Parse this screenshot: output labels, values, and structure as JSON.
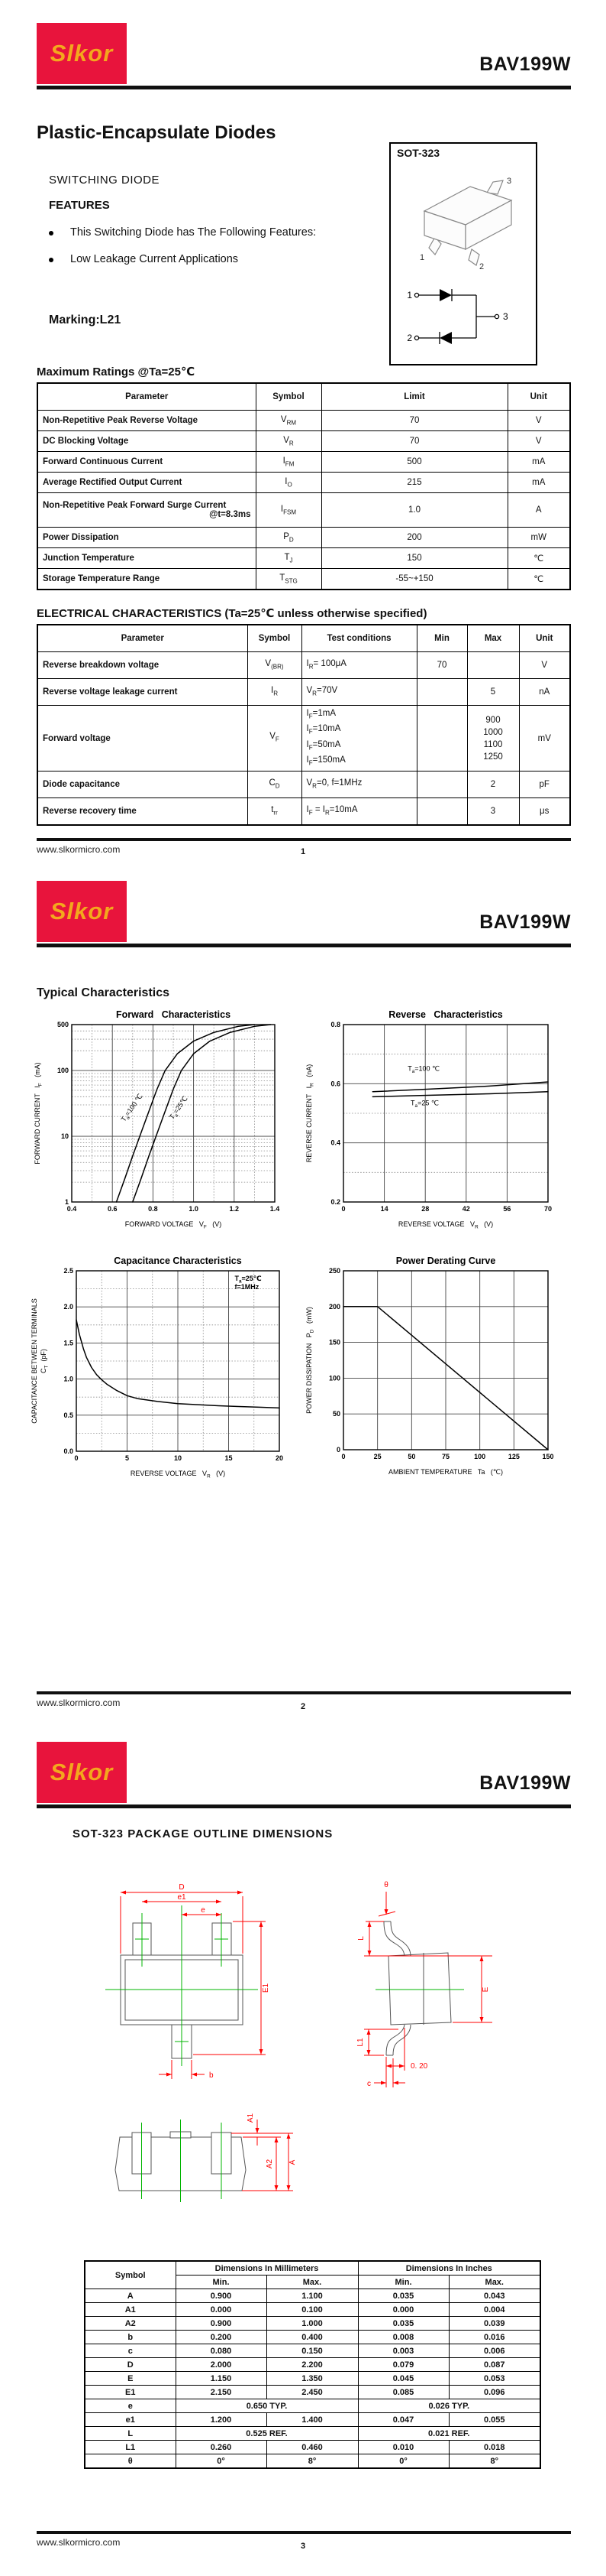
{
  "brand": {
    "logo_text": "Slkor",
    "logo_bg": "#e8143c",
    "logo_text_color": "#f3a81d",
    "part_number": "BAV199W"
  },
  "footer": {
    "website": "www.slkormicro.com",
    "pages": [
      "1",
      "2",
      "3"
    ]
  },
  "page1": {
    "title": "Plastic-Encapsulate Diodes",
    "subtitle": "SWITCHING DIODE",
    "features_heading": "FEATURES",
    "features": [
      "This Switching Diode has The Following Features:",
      "Low Leakage Current Applications"
    ],
    "package": {
      "name": "SOT-323",
      "pins": {
        "p1": "1",
        "p2": "2",
        "p3": "3"
      }
    },
    "marking": "Marking:L21",
    "max_ratings": {
      "heading": "Maximum Ratings @Ta=25℃",
      "columns": [
        "Parameter",
        "Symbol",
        "Limit",
        "Unit"
      ],
      "rows": [
        {
          "parameter": "Non-Repetitive Peak Reverse Voltage",
          "sym": "V",
          "sub": "RM",
          "limit": "70",
          "unit": "V"
        },
        {
          "parameter": "DC Blocking  Voltage",
          "sym": "V",
          "sub": "R",
          "limit": "70",
          "unit": "V"
        },
        {
          "parameter": "Forward Continuous Current",
          "sym": "I",
          "sub": "FM",
          "limit": "500",
          "unit": "mA"
        },
        {
          "parameter": "Average Rectified Output Current",
          "sym": "I",
          "sub": "O",
          "limit": "215",
          "unit": "mA"
        },
        {
          "parameter": "Non-Repetitive Peak Forward Surge Current",
          "parameter2": "@t=8.3ms",
          "tall": true,
          "sym": "I",
          "sub": "FSM",
          "limit": "1.0",
          "unit": "A"
        },
        {
          "parameter": "Power Dissipation",
          "sym": "P",
          "sub": "D",
          "limit": "200",
          "unit": "mW"
        },
        {
          "parameter": "Junction Temperature",
          "sym": "T",
          "sub": "J",
          "limit": "150",
          "unit": "℃"
        },
        {
          "parameter": "Storage Temperature Range",
          "sym": "T",
          "sub": "STG",
          "limit": "-55~+150",
          "unit": "℃"
        }
      ]
    },
    "electrical": {
      "heading": "ELECTRICAL CHARACTERISTICS (Ta=25℃ unless otherwise specified)",
      "columns": [
        "Parameter",
        "Symbol",
        "Test   conditions",
        "Min",
        "Max",
        "Unit"
      ],
      "rows": [
        {
          "parameter": "Reverse breakdown voltage",
          "sym": "V",
          "sub": "(BR)",
          "cond": [
            "I~R~= 100μA"
          ],
          "min": "70",
          "max": [
            ""
          ],
          "unit": "V"
        },
        {
          "parameter": "Reverse voltage  leakage current",
          "sym": "I",
          "sub": "R",
          "cond": [
            "V~R~=70V"
          ],
          "min": "",
          "max": [
            "5"
          ],
          "unit": "nA"
        },
        {
          "parameter": "Forward  voltage",
          "sym": "V",
          "sub": "F",
          "cond": [
            "I~F~=1mA",
            "I~F~=10mA",
            "I~F~=50mA",
            "I~F~=150mA"
          ],
          "min": "",
          "max": [
            "900",
            "1000",
            "1100",
            "1250"
          ],
          "unit": "mV"
        },
        {
          "parameter": "Diode  capacitance",
          "sym": "C",
          "sub": "D",
          "cond": [
            "V~R~=0, f=1MHz"
          ],
          "min": "",
          "max": [
            "2"
          ],
          "unit": "pF"
        },
        {
          "parameter": "Reverse recovery time",
          "sym": "t",
          "sub": "rr",
          "cond": [
            "I~F~ = I~R~=10mA"
          ],
          "min": "",
          "max": [
            "3"
          ],
          "unit": "μs"
        }
      ]
    }
  },
  "page2": {
    "heading": "Typical Characteristics"
  },
  "chart_data": [
    {
      "type": "line",
      "title": "Forward   Characteristics",
      "xlabel": "FORWARD VOLTAGE   V~F~   (V)",
      "ylabel": "FORWARD CURRENT   I~F~   (mA)",
      "xlim": [
        0.4,
        1.4
      ],
      "ylim": [
        1,
        500
      ],
      "ylog": true,
      "xticks": [
        [
          0.4,
          "0.4"
        ],
        [
          0.6,
          "0.6"
        ],
        [
          0.8,
          "0.8"
        ],
        [
          1.0,
          "1.0"
        ],
        [
          1.2,
          "1.2"
        ],
        [
          1.4,
          "1.4"
        ]
      ],
      "yticks": [
        [
          1,
          "1"
        ],
        [
          10,
          "10"
        ],
        [
          100,
          "100"
        ],
        [
          500,
          "500"
        ]
      ],
      "xgrid_solid": [
        0.6,
        0.8,
        1.0,
        1.2
      ],
      "xgrid_dotted": [
        0.5,
        0.7,
        0.9,
        1.1,
        1.3
      ],
      "ygrid_solid": [
        10,
        100
      ],
      "ygrid_dotted": [
        2,
        3,
        4,
        5,
        6,
        7,
        8,
        9,
        20,
        30,
        40,
        50,
        60,
        70,
        80,
        90,
        200,
        300,
        400
      ],
      "series": [
        {
          "name": "Ta=100C",
          "label": "T~a~=100 ℃",
          "label_at": [
            0.705,
            26
          ],
          "label_rotate": -55,
          "points": [
            [
              0.62,
              1
            ],
            [
              0.66,
              2.2
            ],
            [
              0.7,
              5
            ],
            [
              0.74,
              11
            ],
            [
              0.78,
              24
            ],
            [
              0.82,
              52
            ],
            [
              0.86,
              100
            ],
            [
              0.92,
              180
            ],
            [
              1.0,
              280
            ],
            [
              1.1,
              380
            ],
            [
              1.22,
              470
            ],
            [
              1.3,
              500
            ]
          ]
        },
        {
          "name": "Ta=25C",
          "label": "T~a~=25℃",
          "label_at": [
            0.935,
            26
          ],
          "label_rotate": -55,
          "points": [
            [
              0.7,
              1
            ],
            [
              0.74,
              2.2
            ],
            [
              0.78,
              5
            ],
            [
              0.82,
              11
            ],
            [
              0.86,
              24
            ],
            [
              0.9,
              52
            ],
            [
              0.94,
              100
            ],
            [
              1.0,
              180
            ],
            [
              1.08,
              280
            ],
            [
              1.18,
              380
            ],
            [
              1.3,
              470
            ],
            [
              1.38,
              500
            ]
          ]
        }
      ]
    },
    {
      "type": "line",
      "title": "Reverse   Characteristics",
      "xlabel": "REVERSE VOLTAGE   V~R~   (V)",
      "ylabel": "REVERSE CURRENT   I~R~   (nA)",
      "xlim": [
        0,
        70
      ],
      "ylim": [
        0.2,
        0.8
      ],
      "xticks": [
        [
          0,
          "0"
        ],
        [
          14,
          "14"
        ],
        [
          28,
          "28"
        ],
        [
          42,
          "42"
        ],
        [
          56,
          "56"
        ],
        [
          70,
          "70"
        ]
      ],
      "yticks": [
        [
          0.2,
          "0.2"
        ],
        [
          0.4,
          "0.4"
        ],
        [
          0.6,
          "0.6"
        ],
        [
          0.8,
          "0.8"
        ]
      ],
      "xgrid_solid": [
        14,
        28,
        42,
        56
      ],
      "ygrid_solid": [
        0.4,
        0.6
      ],
      "ygrid_dotted": [
        0.3,
        0.5,
        0.7
      ],
      "series": [
        {
          "name": "Ta=100C",
          "label": "T~a~=100 ℃",
          "label_at": [
            22,
            0.643
          ],
          "label_anchor": "start",
          "points": [
            [
              10,
              0.573
            ],
            [
              30,
              0.582
            ],
            [
              50,
              0.592
            ],
            [
              70,
              0.606
            ]
          ]
        },
        {
          "name": "Ta=25C",
          "label": "T~a~=25 ℃",
          "label_at": [
            23,
            0.527
          ],
          "label_anchor": "start",
          "points": [
            [
              10,
              0.556
            ],
            [
              30,
              0.561
            ],
            [
              50,
              0.566
            ],
            [
              70,
              0.573
            ]
          ]
        }
      ]
    },
    {
      "type": "line",
      "title": "Capacitance Characteristics",
      "xlabel": "REVERSE VOLTAGE   V~R~   (V)",
      "ylabel": "CAPACITANCE BETWEEN TERMINALS\nC~T~  (pF)",
      "xlim": [
        0,
        20
      ],
      "ylim": [
        0,
        2.5
      ],
      "xticks": [
        [
          0,
          "0"
        ],
        [
          5,
          "5"
        ],
        [
          10,
          "10"
        ],
        [
          15,
          "15"
        ],
        [
          20,
          "20"
        ]
      ],
      "yticks": [
        [
          0,
          "0.0"
        ],
        [
          0.5,
          "0.5"
        ],
        [
          1.0,
          "1.0"
        ],
        [
          1.5,
          "1.5"
        ],
        [
          2.0,
          "2.0"
        ],
        [
          2.5,
          "2.5"
        ]
      ],
      "xgrid_solid": [
        5,
        10,
        15
      ],
      "xgrid_dotted": [
        2.5,
        7.5,
        12.5,
        17.5
      ],
      "ygrid_solid": [
        0.5,
        1.0,
        1.5,
        2.0
      ],
      "ygrid_dotted": [
        0.25,
        0.75,
        1.25,
        1.75,
        2.25
      ],
      "annotation": {
        "lines": [
          "T~a~=25℃",
          "f=1MHz"
        ],
        "at": [
          15.6,
          2.36
        ]
      },
      "series": [
        {
          "name": "CT",
          "points": [
            [
              0,
              1.82
            ],
            [
              0.3,
              1.62
            ],
            [
              0.7,
              1.42
            ],
            [
              1,
              1.3
            ],
            [
              1.5,
              1.16
            ],
            [
              2,
              1.06
            ],
            [
              2.5,
              0.99
            ],
            [
              3,
              0.93
            ],
            [
              4,
              0.84
            ],
            [
              5,
              0.77
            ],
            [
              6,
              0.73
            ],
            [
              7,
              0.71
            ],
            [
              8,
              0.69
            ],
            [
              10,
              0.66
            ],
            [
              12,
              0.645
            ],
            [
              14,
              0.63
            ],
            [
              16,
              0.62
            ],
            [
              18,
              0.61
            ],
            [
              20,
              0.6
            ]
          ]
        }
      ]
    },
    {
      "type": "line",
      "title": "Power Derating Curve",
      "xlabel": "AMBIENT TEMPERATURE   Ta   (℃)",
      "ylabel": "POWER DISSIPATION   P~D~   (mW)",
      "xlim": [
        0,
        150
      ],
      "ylim": [
        0,
        250
      ],
      "xticks": [
        [
          0,
          "0"
        ],
        [
          25,
          "25"
        ],
        [
          50,
          "50"
        ],
        [
          75,
          "75"
        ],
        [
          100,
          "100"
        ],
        [
          125,
          "125"
        ],
        [
          150,
          "150"
        ]
      ],
      "yticks": [
        [
          0,
          "0"
        ],
        [
          50,
          "50"
        ],
        [
          100,
          "100"
        ],
        [
          150,
          "150"
        ],
        [
          200,
          "200"
        ],
        [
          250,
          "250"
        ]
      ],
      "xgrid_solid": [
        25,
        50,
        75,
        100,
        125
      ],
      "ygrid_solid": [
        50,
        100,
        150,
        200
      ],
      "series": [
        {
          "name": "PD",
          "points": [
            [
              0,
              200
            ],
            [
              25,
              200
            ],
            [
              150,
              0
            ]
          ]
        }
      ]
    }
  ],
  "page3": {
    "heading": "SOT-323  PACKAGE  OUTLINE  DIMENSIONS",
    "drawing_labels": {
      "D": "D",
      "e1": "e1",
      "e": "e",
      "E1": "E1",
      "b": "b",
      "theta": "θ",
      "L": "L",
      "E": "E",
      "L1": "L1",
      "dim020": "0. 20",
      "c": "c",
      "A1": "A1",
      "A2": "A2",
      "A": "A"
    },
    "dim_table": {
      "header": {
        "symbol": "Symbol",
        "mm": "Dimensions In Millimeters",
        "inches": "Dimensions In Inches",
        "min": "Min.",
        "max": "Max."
      },
      "rows": [
        {
          "sym": "A",
          "mm_min": "0.900",
          "mm_max": "1.100",
          "in_min": "0.035",
          "in_max": "0.043"
        },
        {
          "sym": "A1",
          "mm_min": "0.000",
          "mm_max": "0.100",
          "in_min": "0.000",
          "in_max": "0.004"
        },
        {
          "sym": "A2",
          "mm_min": "0.900",
          "mm_max": "1.000",
          "in_min": "0.035",
          "in_max": "0.039"
        },
        {
          "sym": "b",
          "mm_min": "0.200",
          "mm_max": "0.400",
          "in_min": "0.008",
          "in_max": "0.016"
        },
        {
          "sym": "c",
          "mm_min": "0.080",
          "mm_max": "0.150",
          "in_min": "0.003",
          "in_max": "0.006"
        },
        {
          "sym": "D",
          "mm_min": "2.000",
          "mm_max": "2.200",
          "in_min": "0.079",
          "in_max": "0.087"
        },
        {
          "sym": "E",
          "mm_min": "1.150",
          "mm_max": "1.350",
          "in_min": "0.045",
          "in_max": "0.053"
        },
        {
          "sym": "E1",
          "mm_min": "2.150",
          "mm_max": "2.450",
          "in_min": "0.085",
          "in_max": "0.096"
        },
        {
          "sym": "e",
          "mm_span": "0.650 TYP.",
          "in_span": "0.026 TYP."
        },
        {
          "sym": "e1",
          "mm_min": "1.200",
          "mm_max": "1.400",
          "in_min": "0.047",
          "in_max": "0.055"
        },
        {
          "sym": "L",
          "mm_span": "0.525 REF.",
          "in_span": "0.021 REF."
        },
        {
          "sym": "L1",
          "mm_min": "0.260",
          "mm_max": "0.460",
          "in_min": "0.010",
          "in_max": "0.018"
        },
        {
          "sym": "θ",
          "mm_min": "0°",
          "mm_max": "8°",
          "in_min": "0°",
          "in_max": "8°"
        }
      ]
    }
  }
}
